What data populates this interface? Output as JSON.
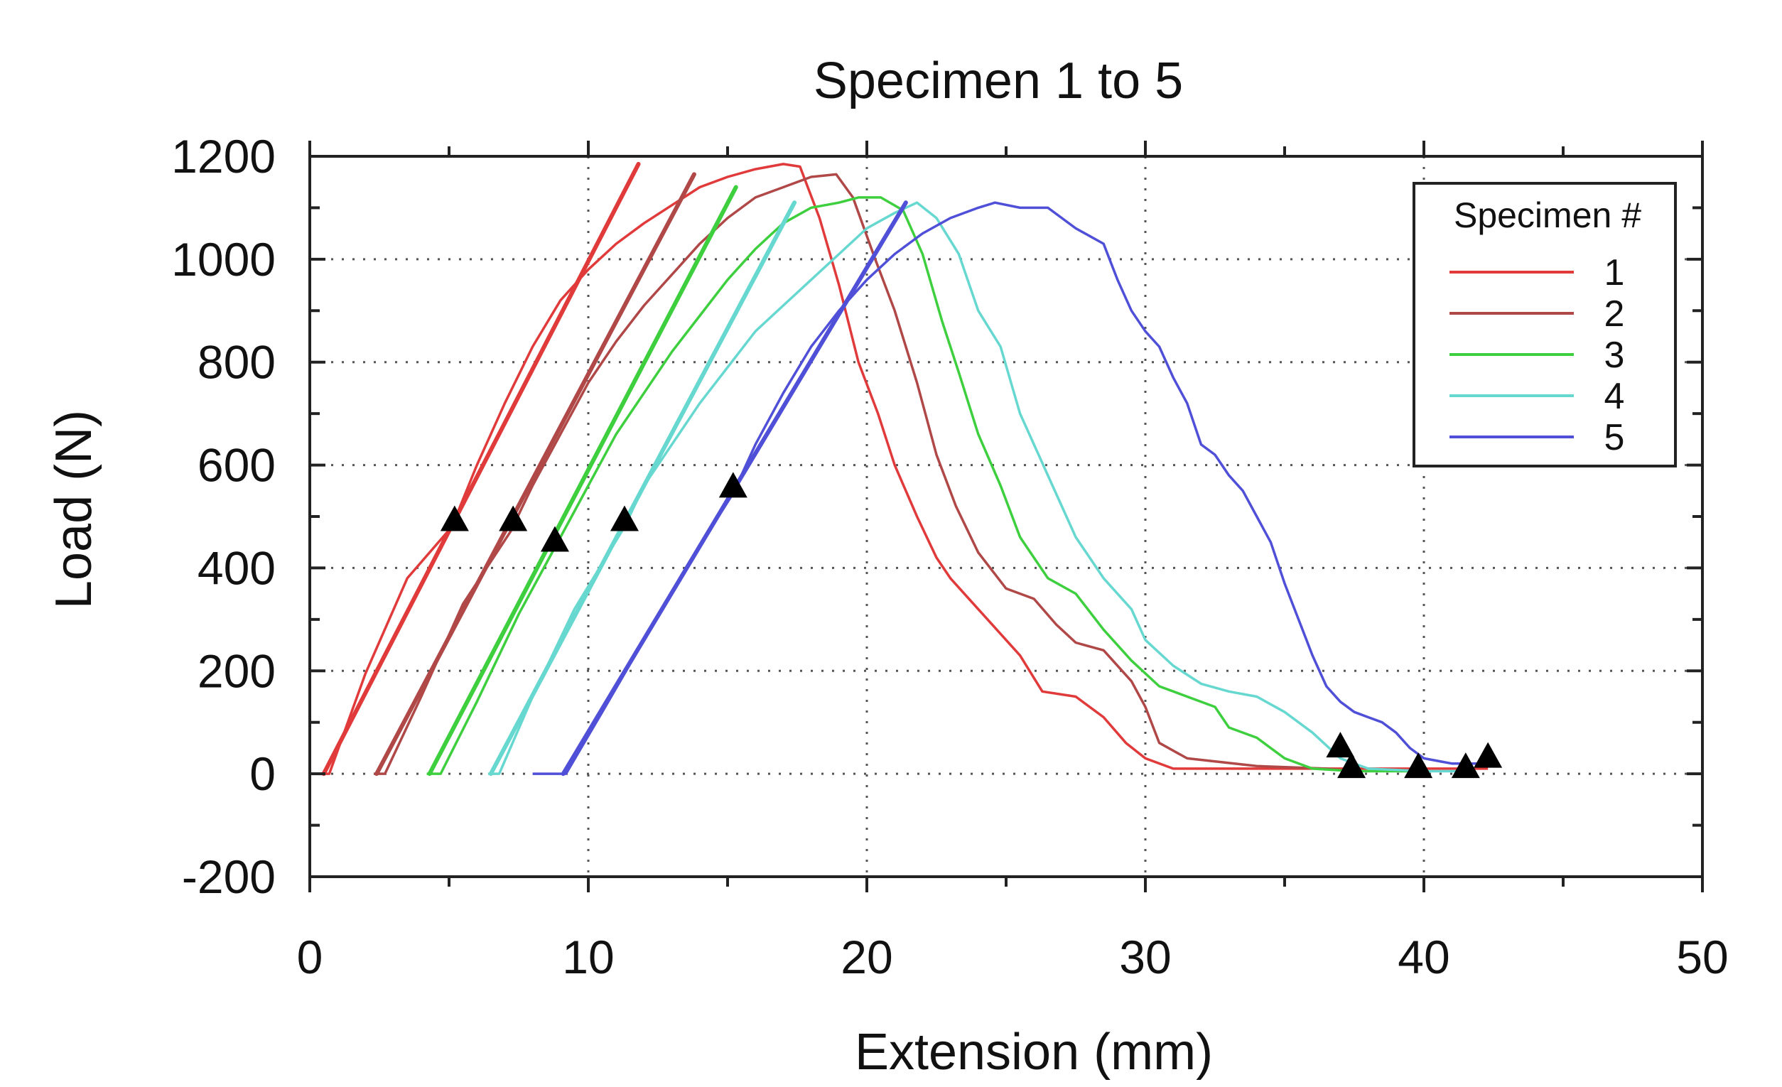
{
  "chart_data": {
    "type": "line",
    "title": "Specimen 1 to 5",
    "xlabel": "Extension (mm)",
    "ylabel": "Load (N)",
    "xlim": [
      0,
      50
    ],
    "ylim": [
      -200,
      1200
    ],
    "x_ticks": [
      0,
      10,
      20,
      30,
      40,
      50
    ],
    "x_tick_labels": [
      "0",
      "10",
      "20",
      "30",
      "40",
      "50"
    ],
    "y_ticks": [
      -200,
      0,
      200,
      400,
      600,
      800,
      1000,
      1200
    ],
    "y_tick_labels": [
      "-200",
      "0",
      "200",
      "400",
      "600",
      "800",
      "1000",
      "1200"
    ],
    "grid": true,
    "legend": {
      "title": "Specimen #",
      "placement": "top-right"
    },
    "series": [
      {
        "name": "1",
        "color": "#e03a3a",
        "points": [
          [
            0,
            0
          ],
          [
            0.7,
            0
          ],
          [
            2,
            195
          ],
          [
            3.5,
            380
          ],
          [
            5.1,
            480
          ],
          [
            6,
            600
          ],
          [
            7,
            720
          ],
          [
            8,
            830
          ],
          [
            9,
            920
          ],
          [
            10,
            980
          ],
          [
            11,
            1030
          ],
          [
            12,
            1070
          ],
          [
            13,
            1105
          ],
          [
            14,
            1140
          ],
          [
            15,
            1160
          ],
          [
            16,
            1175
          ],
          [
            17,
            1185
          ],
          [
            17.6,
            1180
          ],
          [
            18.3,
            1080
          ],
          [
            19,
            950
          ],
          [
            19.7,
            800
          ],
          [
            20.4,
            700
          ],
          [
            21,
            600
          ],
          [
            21.8,
            500
          ],
          [
            22.5,
            420
          ],
          [
            23,
            380
          ],
          [
            24,
            320
          ],
          [
            25.5,
            230
          ],
          [
            26.3,
            160
          ],
          [
            27.5,
            150
          ],
          [
            28.5,
            110
          ],
          [
            29.3,
            60
          ],
          [
            30,
            30
          ],
          [
            31,
            10
          ],
          [
            33,
            10
          ],
          [
            37,
            10
          ],
          [
            41,
            10
          ],
          [
            42.3,
            10
          ]
        ],
        "elastic_line": [
          [
            0.5,
            0
          ],
          [
            11.8,
            1185
          ]
        ]
      },
      {
        "name": "2",
        "color": "#b04848",
        "points": [
          [
            2.3,
            0
          ],
          [
            2.7,
            0
          ],
          [
            4,
            150
          ],
          [
            5.5,
            330
          ],
          [
            7.2,
            470
          ],
          [
            8,
            560
          ],
          [
            9,
            660
          ],
          [
            10,
            760
          ],
          [
            11,
            840
          ],
          [
            12,
            910
          ],
          [
            13,
            970
          ],
          [
            14,
            1030
          ],
          [
            15,
            1080
          ],
          [
            16,
            1120
          ],
          [
            17,
            1140
          ],
          [
            18,
            1160
          ],
          [
            18.9,
            1165
          ],
          [
            19.5,
            1120
          ],
          [
            20.3,
            1000
          ],
          [
            21,
            900
          ],
          [
            21.8,
            760
          ],
          [
            22.5,
            620
          ],
          [
            23.2,
            520
          ],
          [
            24,
            430
          ],
          [
            25,
            360
          ],
          [
            26,
            340
          ],
          [
            26.8,
            290
          ],
          [
            27.5,
            255
          ],
          [
            28.5,
            240
          ],
          [
            29.5,
            180
          ],
          [
            30,
            130
          ],
          [
            30.5,
            60
          ],
          [
            31.5,
            30
          ],
          [
            34,
            15
          ],
          [
            36.5,
            10
          ],
          [
            37.4,
            5
          ]
        ],
        "elastic_line": [
          [
            2.4,
            0
          ],
          [
            13.8,
            1165
          ]
        ]
      },
      {
        "name": "3",
        "color": "#3ecf3e",
        "points": [
          [
            4.2,
            0
          ],
          [
            4.7,
            0
          ],
          [
            6,
            140
          ],
          [
            7.5,
            310
          ],
          [
            8.8,
            440
          ],
          [
            10,
            560
          ],
          [
            11,
            660
          ],
          [
            12,
            740
          ],
          [
            13,
            820
          ],
          [
            14,
            890
          ],
          [
            15,
            960
          ],
          [
            16,
            1020
          ],
          [
            17,
            1070
          ],
          [
            18,
            1100
          ],
          [
            19,
            1110
          ],
          [
            19.7,
            1120
          ],
          [
            20.5,
            1120
          ],
          [
            21.3,
            1095
          ],
          [
            22,
            1010
          ],
          [
            22.7,
            880
          ],
          [
            23.3,
            780
          ],
          [
            24,
            660
          ],
          [
            24.8,
            560
          ],
          [
            25.5,
            460
          ],
          [
            26.5,
            380
          ],
          [
            27.5,
            350
          ],
          [
            28.5,
            280
          ],
          [
            29.5,
            220
          ],
          [
            30.5,
            170
          ],
          [
            31.5,
            150
          ],
          [
            32.5,
            130
          ],
          [
            33,
            90
          ],
          [
            34,
            70
          ],
          [
            35,
            30
          ],
          [
            36,
            10
          ],
          [
            37.5,
            5
          ],
          [
            39.7,
            5
          ]
        ],
        "elastic_line": [
          [
            4.3,
            0
          ],
          [
            15.3,
            1140
          ]
        ]
      },
      {
        "name": "4",
        "color": "#66d8d0",
        "points": [
          [
            6.4,
            0
          ],
          [
            6.8,
            0
          ],
          [
            8,
            150
          ],
          [
            9.5,
            320
          ],
          [
            11.3,
            480
          ],
          [
            12,
            560
          ],
          [
            13,
            640
          ],
          [
            14,
            720
          ],
          [
            15,
            790
          ],
          [
            16,
            860
          ],
          [
            17,
            910
          ],
          [
            18,
            960
          ],
          [
            19,
            1010
          ],
          [
            20,
            1060
          ],
          [
            21,
            1090
          ],
          [
            21.8,
            1110
          ],
          [
            22.5,
            1080
          ],
          [
            23.3,
            1010
          ],
          [
            24,
            900
          ],
          [
            24.8,
            830
          ],
          [
            25.5,
            700
          ],
          [
            26.5,
            580
          ],
          [
            27.5,
            460
          ],
          [
            28.5,
            380
          ],
          [
            29.5,
            320
          ],
          [
            30,
            260
          ],
          [
            31,
            210
          ],
          [
            32,
            175
          ],
          [
            33,
            160
          ],
          [
            34,
            150
          ],
          [
            35,
            120
          ],
          [
            36,
            80
          ],
          [
            37,
            30
          ],
          [
            38,
            10
          ],
          [
            40,
            5
          ],
          [
            41.5,
            5
          ]
        ],
        "elastic_line": [
          [
            6.5,
            0
          ],
          [
            17.4,
            1110
          ]
        ]
      },
      {
        "name": "5",
        "color": "#4f4fd8",
        "points": [
          [
            8,
            0
          ],
          [
            9.2,
            0
          ],
          [
            10.5,
            120
          ],
          [
            12,
            260
          ],
          [
            13.5,
            400
          ],
          [
            15.2,
            545
          ],
          [
            16,
            640
          ],
          [
            17,
            740
          ],
          [
            18,
            830
          ],
          [
            19,
            900
          ],
          [
            20,
            960
          ],
          [
            21,
            1010
          ],
          [
            22,
            1050
          ],
          [
            23,
            1080
          ],
          [
            24,
            1100
          ],
          [
            24.6,
            1110
          ],
          [
            25.5,
            1100
          ],
          [
            26.5,
            1100
          ],
          [
            27.5,
            1060
          ],
          [
            28.5,
            1030
          ],
          [
            29,
            960
          ],
          [
            29.5,
            900
          ],
          [
            30,
            860
          ],
          [
            30.5,
            830
          ],
          [
            31,
            770
          ],
          [
            31.5,
            720
          ],
          [
            32,
            640
          ],
          [
            32.5,
            620
          ],
          [
            33,
            580
          ],
          [
            33.5,
            550
          ],
          [
            34,
            500
          ],
          [
            34.5,
            450
          ],
          [
            35,
            370
          ],
          [
            35.5,
            300
          ],
          [
            36,
            230
          ],
          [
            36.5,
            170
          ],
          [
            37,
            140
          ],
          [
            37.5,
            120
          ],
          [
            38,
            110
          ],
          [
            38.5,
            100
          ],
          [
            39,
            80
          ],
          [
            39.5,
            50
          ],
          [
            40,
            30
          ],
          [
            41,
            20
          ],
          [
            41.5,
            20
          ],
          [
            42,
            20
          ]
        ],
        "elastic_line": [
          [
            9.1,
            0
          ],
          [
            21.4,
            1110
          ]
        ]
      }
    ],
    "markers": {
      "shape": "triangle",
      "color": "#000000",
      "points": [
        [
          5.2,
          480
        ],
        [
          7.3,
          480
        ],
        [
          8.8,
          440
        ],
        [
          11.3,
          480
        ],
        [
          15.2,
          545
        ],
        [
          37,
          40
        ],
        [
          37.4,
          0
        ],
        [
          39.8,
          0
        ],
        [
          41.5,
          0
        ],
        [
          42.3,
          20
        ]
      ]
    }
  }
}
